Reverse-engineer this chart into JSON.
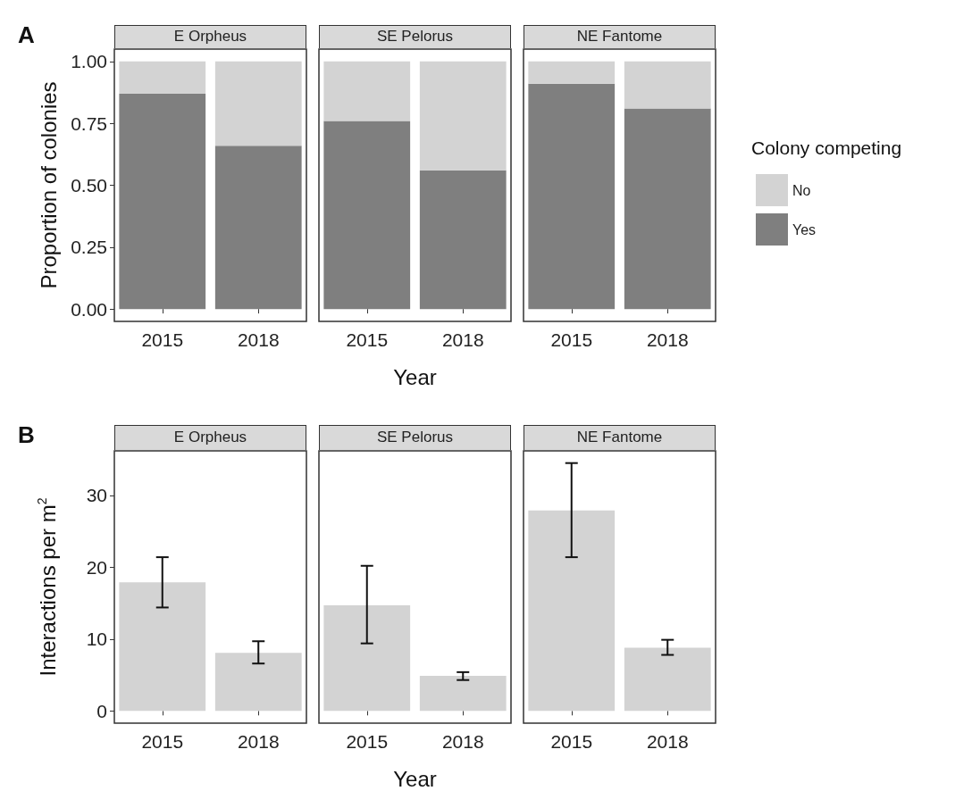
{
  "chart_data": [
    {
      "type": "bar",
      "title": "E Orpheus",
      "ylabel": "Proportion of colonies",
      "annotations": [
        "A"
      ],
      "categories": [
        "2015",
        "2018"
      ],
      "stacked": true,
      "series": [
        {
          "color": "#7f7f7f",
          "values": [
            0.87,
            0.66
          ]
        },
        {
          "color": "#d3d3d3",
          "values": [
            0.13,
            0.34
          ]
        }
      ],
      "ylim": [
        -0.05,
        1.05
      ],
      "yticks": [
        {
          "value": 0,
          "label": "0.00"
        },
        {
          "value": 0.25,
          "label": "0.25"
        },
        {
          "value": 0.5,
          "label": "0.50"
        },
        {
          "value": 0.75,
          "label": "0.75"
        },
        {
          "value": 1,
          "label": "1.00"
        }
      ],
      "grid": false
    },
    {
      "type": "bar",
      "title": "SE Pelorus",
      "xlabel": "Year",
      "categories": [
        "2015",
        "2018"
      ],
      "stacked": true,
      "series": [
        {
          "color": "#7f7f7f",
          "values": [
            0.76,
            0.56
          ]
        },
        {
          "color": "#d3d3d3",
          "values": [
            0.24,
            0.44
          ]
        }
      ],
      "ylim": [
        -0.05,
        1.05
      ],
      "tick_labels": "x",
      "grid": false
    },
    {
      "type": "bar",
      "title": "NE Fantome",
      "legend_title": "Colony competing",
      "legend": "right",
      "categories": [
        "2015",
        "2018"
      ],
      "stacked": true,
      "series": [
        {
          "name": "Yes",
          "color": "#7f7f7f",
          "values": [
            0.91,
            0.81
          ]
        },
        {
          "name": "No",
          "color": "#d3d3d3",
          "values": [
            0.09,
            0.19
          ]
        }
      ],
      "ylim": [
        -0.05,
        1.05
      ],
      "tick_labels": "x",
      "grid": false
    },
    {
      "type": "bar",
      "title": "E Orpheus",
      "ylabel": "Interactions per m$^{2}$",
      "annotations": [
        "B"
      ],
      "categories": [
        "2015",
        "2018"
      ],
      "color": "#d3d3d3",
      "values": [
        17.9,
        8.1
      ],
      "errors": [
        [
          14.4,
          21.4
        ],
        [
          6.6,
          9.7
        ]
      ],
      "ylim": [
        -1.7,
        36.2
      ],
      "yticks": [
        0,
        10,
        20,
        30
      ],
      "grid": false
    },
    {
      "type": "bar",
      "title": "SE Pelorus",
      "xlabel": "Year",
      "categories": [
        "2015",
        "2018"
      ],
      "color": "#d3d3d3",
      "values": [
        14.7,
        4.9
      ],
      "errors": [
        [
          9.4,
          20.2
        ],
        [
          4.3,
          5.4
        ]
      ],
      "ylim": [
        -1.7,
        36.2
      ],
      "tick_labels": "x",
      "grid": false
    },
    {
      "type": "bar",
      "title": "NE Fantome",
      "categories": [
        "2015",
        "2018"
      ],
      "color": "#d3d3d3",
      "values": [
        27.9,
        8.8
      ],
      "errors": [
        [
          21.4,
          34.5
        ],
        [
          7.8,
          9.9
        ]
      ],
      "ylim": [
        -1.7,
        36.2
      ],
      "tick_labels": "x",
      "grid": false
    }
  ]
}
